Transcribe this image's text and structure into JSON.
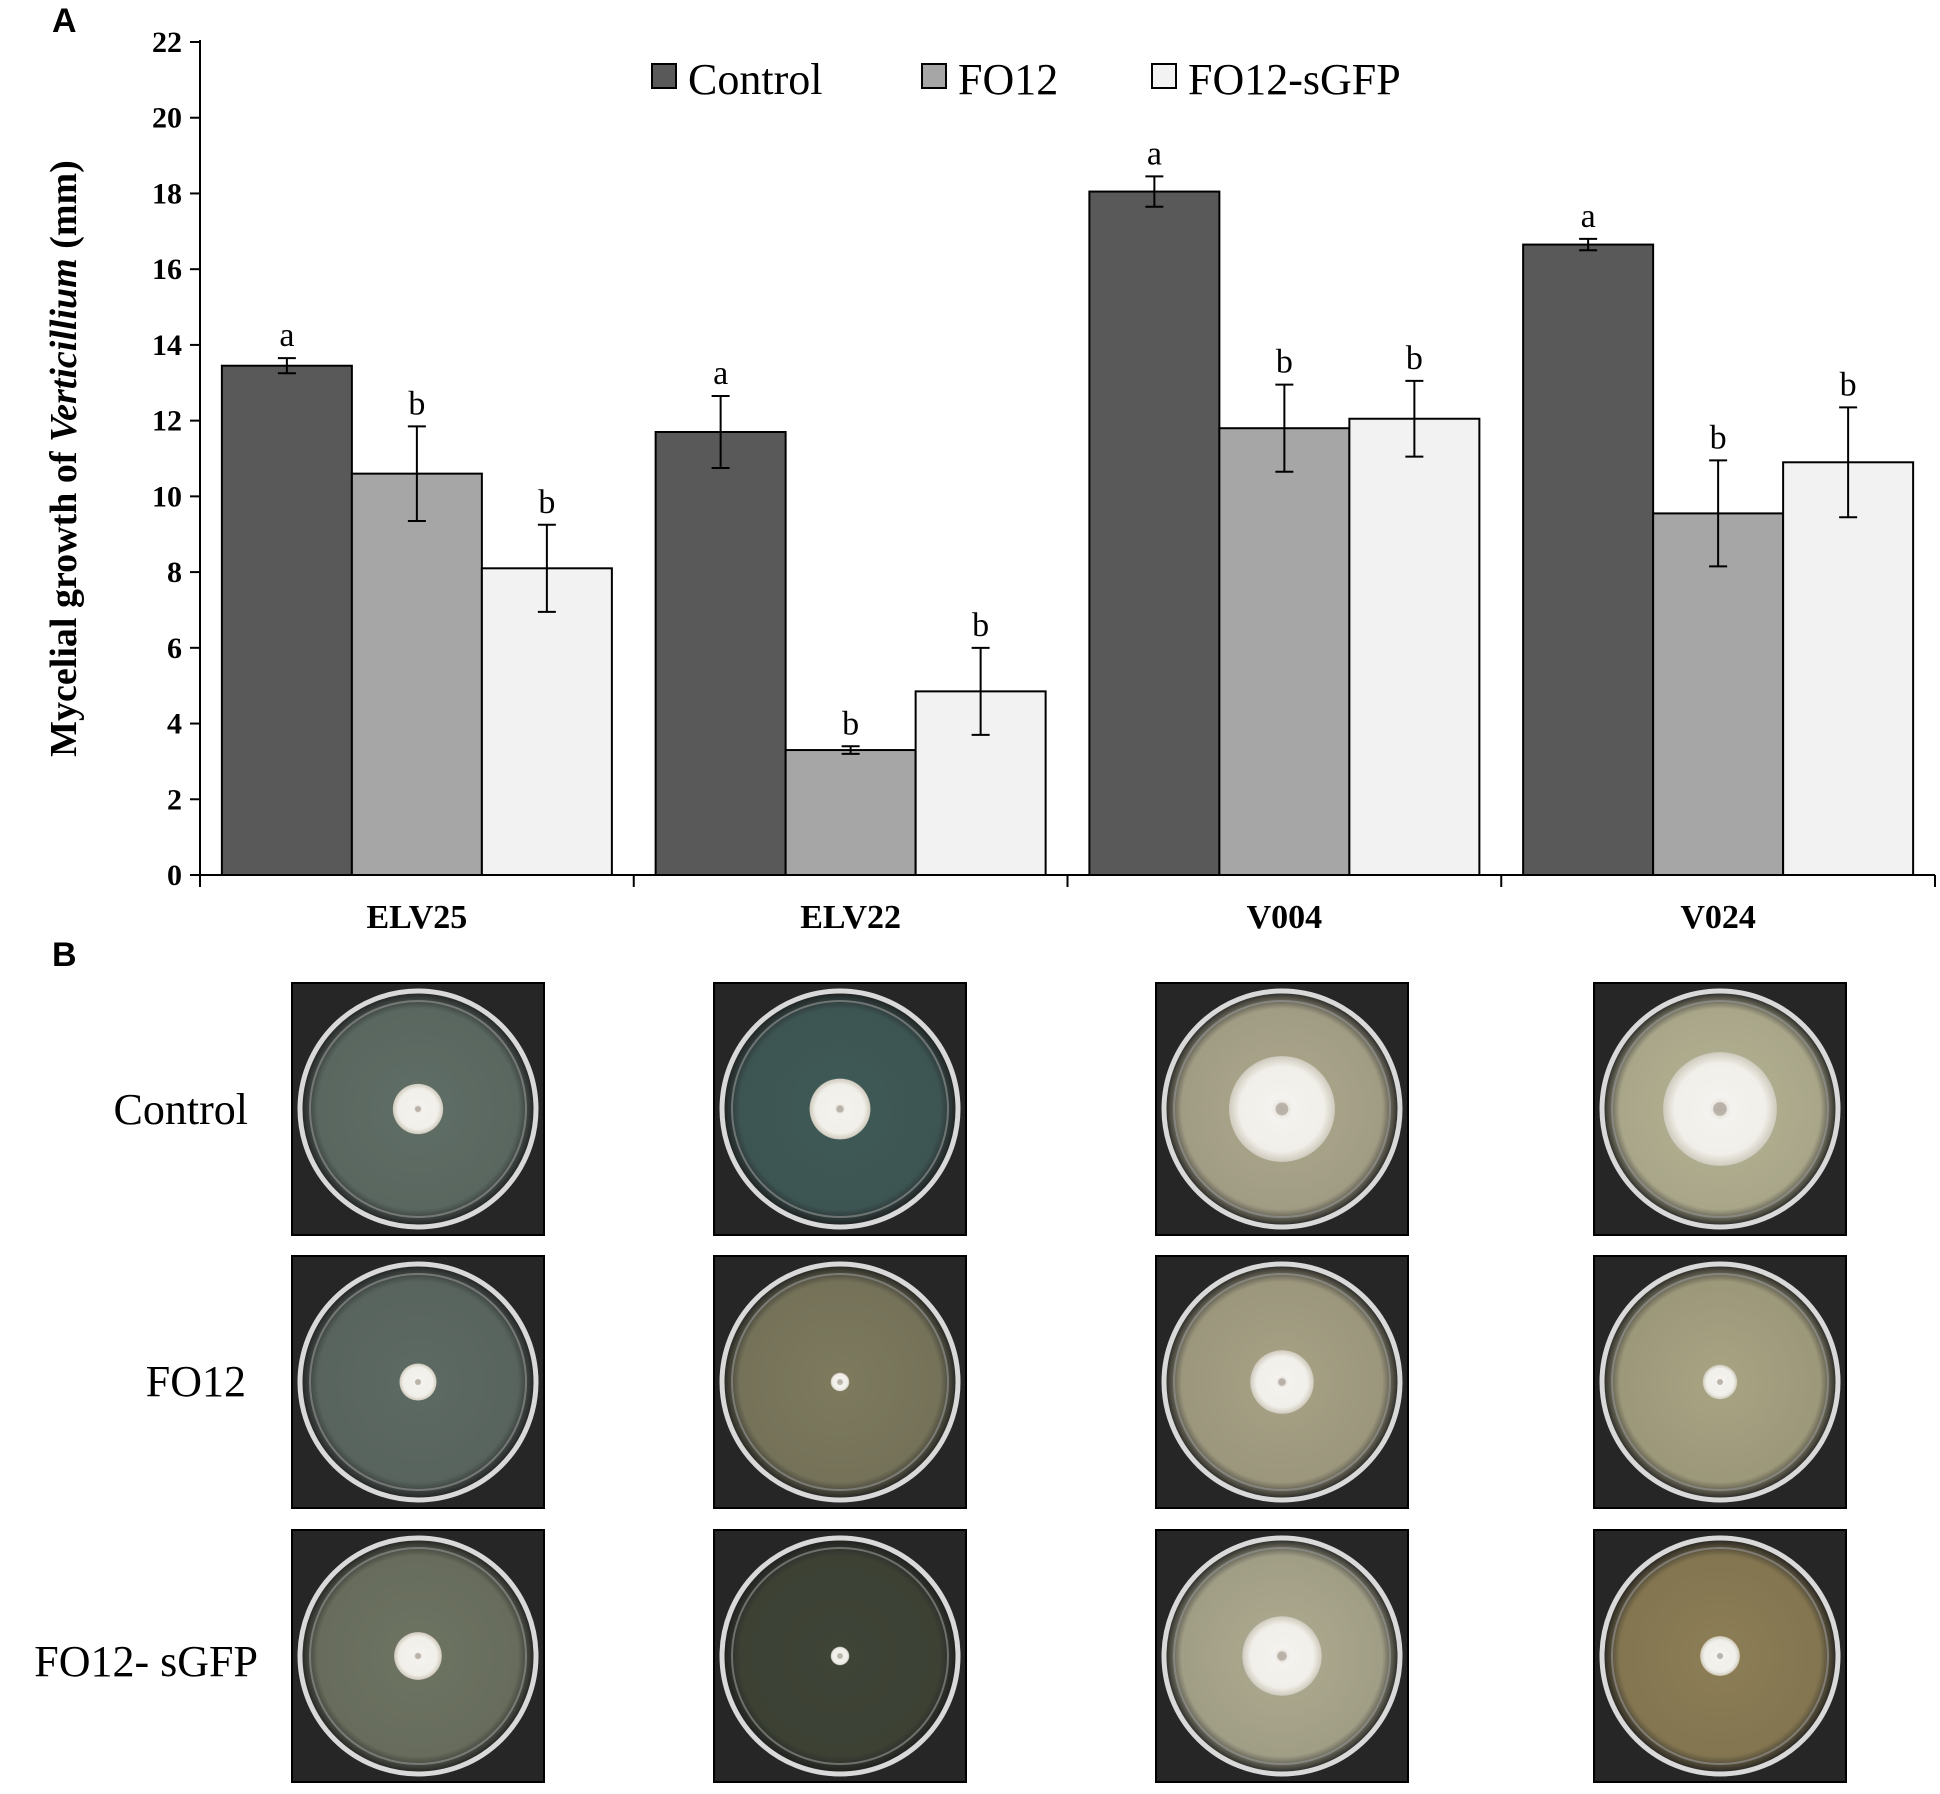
{
  "panel_a_label": "A",
  "panel_b_label": "B",
  "chart_data": {
    "type": "bar",
    "title": "",
    "xlabel": "",
    "ylabel_prefix": "Mycelial growth of ",
    "ylabel_italic": "Verticillium",
    "ylabel_suffix": " (mm)",
    "ylim": [
      0,
      22
    ],
    "yticks": [
      0,
      2,
      4,
      6,
      8,
      10,
      12,
      14,
      16,
      18,
      20,
      22
    ],
    "categories": [
      "ELV25",
      "ELV22",
      "V004",
      "V024"
    ],
    "legend_position": "top",
    "series": [
      {
        "name": "Control",
        "color": "#595959",
        "values": [
          13.45,
          11.7,
          18.05,
          16.65
        ],
        "errors": [
          0.2,
          0.95,
          0.4,
          0.15
        ],
        "labels": [
          "a",
          "a",
          "a",
          "a"
        ]
      },
      {
        "name": "FO12",
        "color": "#a6a6a6",
        "values": [
          10.6,
          3.3,
          11.8,
          9.55
        ],
        "errors": [
          1.25,
          0.1,
          1.15,
          1.4
        ],
        "labels": [
          "b",
          "b",
          "b",
          "b"
        ]
      },
      {
        "name": "FO12-sGFP",
        "color": "#f2f2f2",
        "values": [
          8.1,
          4.85,
          12.05,
          10.9
        ],
        "errors": [
          1.15,
          1.15,
          1.0,
          1.45
        ],
        "labels": [
          "b",
          "b",
          "b",
          "b"
        ]
      }
    ]
  },
  "photo_panel": {
    "row_labels": [
      "Control",
      "FO12",
      "FO12- sGFP"
    ],
    "plates": [
      [
        {
          "colony": 0.19,
          "tint": "#5f6e66"
        },
        {
          "colony": 0.23,
          "tint": "#3f5a58"
        },
        {
          "colony": 0.4,
          "tint": "#aea98e"
        },
        {
          "colony": 0.43,
          "tint": "#b7b494"
        }
      ],
      [
        {
          "colony": 0.14,
          "tint": "#5d6a63"
        },
        {
          "colony": 0.07,
          "tint": "#7d7a5e"
        },
        {
          "colony": 0.24,
          "tint": "#a8a386"
        },
        {
          "colony": 0.13,
          "tint": "#a9a483"
        }
      ],
      [
        {
          "colony": 0.18,
          "tint": "#6e7462"
        },
        {
          "colony": 0.07,
          "tint": "#3e4436"
        },
        {
          "colony": 0.3,
          "tint": "#aeab90"
        },
        {
          "colony": 0.15,
          "tint": "#8d7e55"
        }
      ]
    ]
  }
}
